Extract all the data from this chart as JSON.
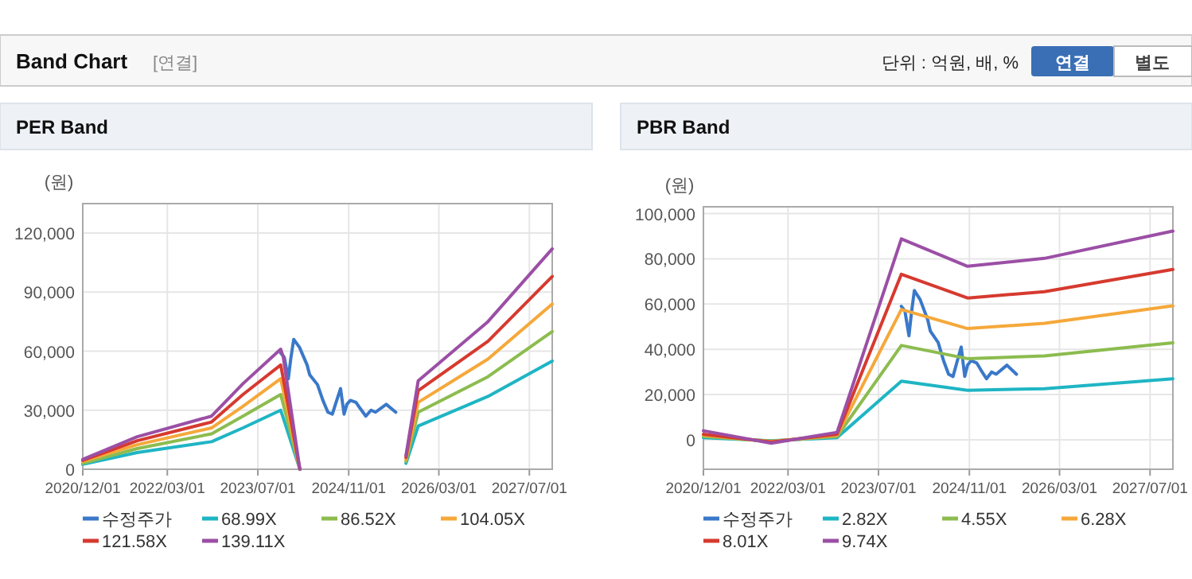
{
  "chart_data": [
    {
      "type": "line",
      "title": "PER Band",
      "ylabel": "(원)",
      "annotations": [
        "Band Chart",
        "[연결]",
        "단위 : 억원, 배, %",
        "연결",
        "별도"
      ],
      "xlim": [
        "2020-12-01",
        "2027-11-01"
      ],
      "xticks": [
        {
          "value": "2020-12-01",
          "label": "2020/12/01"
        },
        {
          "value": "2022-03-01",
          "label": "2022/03/01"
        },
        {
          "value": "2023-07-01",
          "label": "2023/07/01"
        },
        {
          "value": "2024-11-01",
          "label": "2024/11/01"
        },
        {
          "value": "2026-03-01",
          "label": "2026/03/01"
        },
        {
          "value": "2027-07-01",
          "label": "2027/07/01"
        }
      ],
      "ylim": [
        0,
        135000
      ],
      "yticks": [
        0,
        {
          "value": 30000,
          "label": "30,000"
        },
        {
          "value": 60000,
          "label": "60,000"
        },
        {
          "value": 90000,
          "label": "90,000"
        },
        {
          "value": 120000,
          "label": "120,000"
        }
      ],
      "grid": true,
      "legend": "bottom",
      "series": [
        {
          "name": "수정주가",
          "color": "#3a78c9",
          "x": [
            "2023-11-01",
            "2023-11-20",
            "2023-12-12",
            "2023-12-25",
            "2024-01-10",
            "2024-02-10",
            "2024-03-22",
            "2024-04-05",
            "2024-05-17",
            "2024-06-15",
            "2024-07-12",
            "2024-08-05",
            "2024-08-25",
            "2024-09-18",
            "2024-10-07",
            "2024-10-22",
            "2024-11-10",
            "2024-12-10",
            "2025-01-01",
            "2025-02-01",
            "2025-03-01",
            "2025-03-25",
            "2025-05-22",
            "2025-07-12"
          ],
          "values": [
            59000,
            57000,
            46000,
            56000,
            66000,
            62000,
            53000,
            48000,
            43000,
            35000,
            29000,
            28000,
            34000,
            41000,
            28000,
            33000,
            35000,
            34000,
            31000,
            27000,
            30000,
            29000,
            33000,
            29000
          ]
        },
        {
          "name": "68.99X",
          "color": "#1fb5c4",
          "x": [
            "2020-12-01",
            "2021-09-20",
            "2022-10-25",
            "2023-04-12",
            "2023-11-01",
            "2023-11-15",
            "2024-02-12",
            null,
            "2025-09-05",
            "2025-11-10",
            "2026-11-20",
            "2027-11-01"
          ],
          "values": [
            2500,
            8500,
            14000,
            21000,
            30000,
            26000,
            0,
            null,
            3000,
            22000,
            37000,
            55000
          ]
        },
        {
          "name": "86.52X",
          "color": "#8cbc4f",
          "x": [
            "2020-12-01",
            "2021-09-20",
            "2022-10-25",
            "2023-04-12",
            "2023-11-01",
            "2023-11-15",
            "2024-02-12",
            null,
            "2025-09-05",
            "2025-11-10",
            "2026-11-20",
            "2027-11-01"
          ],
          "values": [
            3000,
            10500,
            18000,
            27000,
            38000,
            33000,
            0,
            null,
            4000,
            29000,
            47000,
            70000
          ]
        },
        {
          "name": "104.05X",
          "color": "#f5a83a",
          "x": [
            "2020-12-01",
            "2021-09-20",
            "2022-10-25",
            "2023-04-12",
            "2023-11-01",
            "2023-11-15",
            "2024-02-12",
            null,
            "2025-09-05",
            "2025-11-10",
            "2026-11-20",
            "2027-11-01"
          ],
          "values": [
            4000,
            12500,
            21000,
            32000,
            46000,
            40000,
            0,
            null,
            5000,
            34000,
            56000,
            84000
          ]
        },
        {
          "name": "121.58X",
          "color": "#d63a2f",
          "x": [
            "2020-12-01",
            "2021-09-20",
            "2022-10-25",
            "2023-04-12",
            "2023-11-01",
            "2023-11-15",
            "2024-02-12",
            null,
            "2025-09-05",
            "2025-11-10",
            "2026-11-20",
            "2027-11-01"
          ],
          "values": [
            4500,
            14500,
            24000,
            38000,
            53000,
            46000,
            0,
            null,
            6000,
            40000,
            65000,
            98000
          ]
        },
        {
          "name": "139.11X",
          "color": "#9b4fa5",
          "x": [
            "2020-12-01",
            "2021-09-20",
            "2022-10-25",
            "2023-04-12",
            "2023-11-01",
            "2023-11-15",
            "2024-02-12",
            null,
            "2025-09-05",
            "2025-11-10",
            "2026-11-20",
            "2027-11-01"
          ],
          "values": [
            5000,
            16500,
            27000,
            43500,
            61000,
            57000,
            0,
            null,
            7000,
            45000,
            75000,
            112000
          ]
        }
      ]
    },
    {
      "type": "line",
      "title": "PBR Band",
      "ylabel": "(원)",
      "xlim": [
        "2020-12-01",
        "2027-11-01"
      ],
      "xticks": [
        {
          "value": "2020-12-01",
          "label": "2020/12/01"
        },
        {
          "value": "2022-03-01",
          "label": "2022/03/01"
        },
        {
          "value": "2023-07-01",
          "label": "2023/07/01"
        },
        {
          "value": "2024-11-01",
          "label": "2024/11/01"
        },
        {
          "value": "2026-03-01",
          "label": "2026/03/01"
        },
        {
          "value": "2027-07-01",
          "label": "2027/07/01"
        }
      ],
      "ylim": [
        -13000,
        103000
      ],
      "yticks": [
        0,
        {
          "value": 20000,
          "label": "20,000"
        },
        {
          "value": 40000,
          "label": "40,000"
        },
        {
          "value": 60000,
          "label": "60,000"
        },
        {
          "value": 80000,
          "label": "80,000"
        },
        {
          "value": 100000,
          "label": "100,000"
        }
      ],
      "grid": true,
      "legend": "bottom",
      "series": [
        {
          "name": "수정주가",
          "color": "#3a78c9",
          "x": [
            "2023-11-01",
            "2023-11-20",
            "2023-12-12",
            "2023-12-25",
            "2024-01-10",
            "2024-02-10",
            "2024-03-22",
            "2024-04-05",
            "2024-05-17",
            "2024-06-15",
            "2024-07-12",
            "2024-08-05",
            "2024-08-25",
            "2024-09-18",
            "2024-10-07",
            "2024-10-22",
            "2024-11-10",
            "2024-12-10",
            "2025-01-01",
            "2025-02-01",
            "2025-03-01",
            "2025-03-25",
            "2025-05-22",
            "2025-07-12"
          ],
          "values": [
            59000,
            57000,
            46000,
            56000,
            66000,
            62000,
            53000,
            48000,
            43000,
            35000,
            29000,
            28000,
            34000,
            41000,
            28000,
            33000,
            35000,
            34000,
            31000,
            27000,
            30000,
            29000,
            33000,
            29000
          ]
        },
        {
          "name": "2.82X",
          "color": "#1fb5c4",
          "x": [
            "2020-12-01",
            "2021-12-01",
            "2022-11-20",
            "2023-11-01",
            "2024-10-22",
            "2025-12-10",
            "2027-11-01"
          ],
          "values": [
            1000,
            -400,
            1000,
            25900,
            21900,
            22600,
            27000
          ]
        },
        {
          "name": "4.55X",
          "color": "#8cbc4f",
          "x": [
            "2020-12-01",
            "2021-12-01",
            "2022-11-20",
            "2023-11-01",
            "2024-10-22",
            "2025-12-10",
            "2027-11-01"
          ],
          "values": [
            1500,
            -600,
            1500,
            41700,
            35900,
            37100,
            42900
          ]
        },
        {
          "name": "6.28X",
          "color": "#f5a83a",
          "x": [
            "2020-12-01",
            "2021-12-01",
            "2022-11-20",
            "2023-11-01",
            "2024-10-22",
            "2025-12-10",
            "2027-11-01"
          ],
          "values": [
            2000,
            -800,
            2000,
            57600,
            49200,
            51500,
            59200
          ]
        },
        {
          "name": "8.01X",
          "color": "#d63a2f",
          "x": [
            "2020-12-01",
            "2021-12-01",
            "2022-11-20",
            "2023-11-01",
            "2024-10-22",
            "2025-12-10",
            "2027-11-01"
          ],
          "values": [
            2500,
            -1000,
            2500,
            73200,
            62700,
            65500,
            75300
          ]
        },
        {
          "name": "9.74X",
          "color": "#9b4fa5",
          "x": [
            "2020-12-01",
            "2021-12-01",
            "2022-11-20",
            "2023-11-01",
            "2024-10-22",
            "2025-12-10",
            "2027-11-01"
          ],
          "values": [
            4000,
            -1500,
            3300,
            88800,
            76700,
            80200,
            92300
          ]
        }
      ]
    }
  ]
}
